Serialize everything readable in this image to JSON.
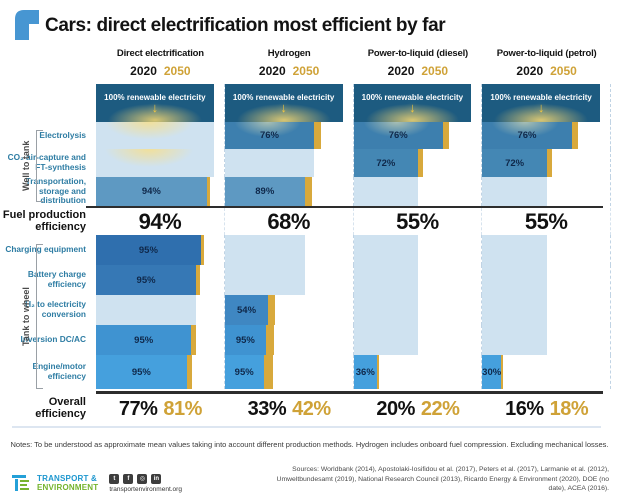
{
  "title": {
    "text": "Cars: direct electrification most efficient by far"
  },
  "years": {
    "y2020": "2020",
    "y2050": "2050"
  },
  "sections": {
    "well_to_tank": "Well to tank",
    "tank_to_wheel": "Tank to wheel"
  },
  "labels": {
    "fuel_production_line1": "Fuel production",
    "fuel_production_line2": "efficiency",
    "overall": "Overall efficiency"
  },
  "chart_data": {
    "type": "bar",
    "subtype": "efficiency-cascade",
    "unit": "%",
    "renewable_header": "100% renewable electricity",
    "colors": {
      "header_navy": "#1d5b80",
      "gold_2050": "#d8a93c",
      "gold_text": "#cfa237",
      "year_2020_text": "#141414",
      "skip_pale": "#cfe2f0",
      "row_label_teal": "#2d7ca3",
      "bar_label_navy": "#0f284a",
      "row_fills": {
        "electrolysis": "#3d7fae",
        "co2": "#4487b4",
        "transport": "#5e99c2",
        "charging": "#2f6fae",
        "battery": "#3678b5",
        "h2conv": "#3f87c2",
        "inversion": "#3f93d1",
        "engine": "#45a0dd"
      }
    },
    "row_defs": [
      {
        "key": "electrolysis",
        "label": "Electrolysis",
        "section": "well_to_tank"
      },
      {
        "key": "co2",
        "label": "CO₂ air-capture and FT-synthesis",
        "section": "well_to_tank"
      },
      {
        "key": "transport",
        "label": "Transportation, storage and distribution",
        "section": "well_to_tank"
      },
      {
        "key": "charging",
        "label": "Charging equipment",
        "section": "tank_to_wheel"
      },
      {
        "key": "battery",
        "label": "Battery charge efficiency",
        "section": "tank_to_wheel"
      },
      {
        "key": "h2conv",
        "label": "H₂ to electricity conversion",
        "section": "tank_to_wheel"
      },
      {
        "key": "inversion",
        "label": "Inversion DC/AC",
        "section": "tank_to_wheel"
      },
      {
        "key": "engine",
        "label": "Engine/motor efficiency",
        "section": "tank_to_wheel"
      }
    ],
    "columns": [
      {
        "name": "Direct electrification",
        "fuel_production_efficiency_2020": "94%",
        "overall_efficiency_2020": "77%",
        "overall_efficiency_2050": "81%",
        "steps": {
          "electrolysis": {
            "applies": false,
            "cum_width_pct": 100,
            "glow": true
          },
          "co2": {
            "applies": false,
            "cum_width_pct": 100,
            "glow": true
          },
          "transport": {
            "applies": true,
            "value": "94%",
            "cum_width_pct": 94,
            "gold_extra_pct": 3
          },
          "charging": {
            "applies": true,
            "value": "95%",
            "cum_width_pct": 89,
            "gold_extra_pct": 3
          },
          "battery": {
            "applies": true,
            "value": "95%",
            "cum_width_pct": 85,
            "gold_extra_pct": 3.5
          },
          "h2conv": {
            "applies": false,
            "cum_width_pct": 85
          },
          "inversion": {
            "applies": true,
            "value": "95%",
            "cum_width_pct": 81,
            "gold_extra_pct": 4
          },
          "engine": {
            "applies": true,
            "value": "95%",
            "cum_width_pct": 77,
            "gold_extra_pct": 4.5
          }
        }
      },
      {
        "name": "Hydrogen",
        "fuel_production_efficiency_2020": "68%",
        "overall_efficiency_2020": "33%",
        "overall_efficiency_2050": "42%",
        "steps": {
          "electrolysis": {
            "applies": true,
            "value": "76%",
            "cum_width_pct": 76,
            "gold_extra_pct": 6,
            "glow": true
          },
          "co2": {
            "applies": false,
            "cum_width_pct": 76
          },
          "transport": {
            "applies": true,
            "value": "89%",
            "cum_width_pct": 68,
            "gold_extra_pct": 6
          },
          "charging": {
            "applies": false,
            "cum_width_pct": 68
          },
          "battery": {
            "applies": false,
            "cum_width_pct": 68
          },
          "h2conv": {
            "applies": true,
            "value": "54%",
            "cum_width_pct": 37,
            "gold_extra_pct": 6
          },
          "inversion": {
            "applies": true,
            "value": "95%",
            "cum_width_pct": 35,
            "gold_extra_pct": 7
          },
          "engine": {
            "applies": true,
            "value": "95%",
            "cum_width_pct": 33,
            "gold_extra_pct": 8
          }
        }
      },
      {
        "name": "Power-to-liquid (diesel)",
        "fuel_production_efficiency_2020": "55%",
        "overall_efficiency_2020": "20%",
        "overall_efficiency_2050": "22%",
        "steps": {
          "electrolysis": {
            "applies": true,
            "value": "76%",
            "cum_width_pct": 76,
            "gold_extra_pct": 5,
            "glow": true
          },
          "co2": {
            "applies": true,
            "value": "72%",
            "cum_width_pct": 55,
            "gold_extra_pct": 4
          },
          "transport": {
            "applies": false,
            "cum_width_pct": 55
          },
          "charging": {
            "applies": false,
            "cum_width_pct": 55
          },
          "battery": {
            "applies": false,
            "cum_width_pct": 55
          },
          "h2conv": {
            "applies": false,
            "cum_width_pct": 55
          },
          "inversion": {
            "applies": false,
            "cum_width_pct": 55
          },
          "engine": {
            "applies": true,
            "value": "36%",
            "cum_width_pct": 20,
            "gold_extra_pct": 2
          }
        }
      },
      {
        "name": "Power-to-liquid (petrol)",
        "fuel_production_efficiency_2020": "55%",
        "overall_efficiency_2020": "16%",
        "overall_efficiency_2050": "18%",
        "steps": {
          "electrolysis": {
            "applies": true,
            "value": "76%",
            "cum_width_pct": 76,
            "gold_extra_pct": 5,
            "glow": true
          },
          "co2": {
            "applies": true,
            "value": "72%",
            "cum_width_pct": 55,
            "gold_extra_pct": 4
          },
          "transport": {
            "applies": false,
            "cum_width_pct": 55
          },
          "charging": {
            "applies": false,
            "cum_width_pct": 55
          },
          "battery": {
            "applies": false,
            "cum_width_pct": 55
          },
          "h2conv": {
            "applies": false,
            "cum_width_pct": 55
          },
          "inversion": {
            "applies": false,
            "cum_width_pct": 55
          },
          "engine": {
            "applies": true,
            "value": "30%",
            "cum_width_pct": 16,
            "gold_extra_pct": 2
          }
        }
      }
    ]
  },
  "notes": "Notes: To be understood as approximate mean values taking into account different production methods. Hydrogen includes onboard fuel compression. Excluding mechanical losses.",
  "footer": {
    "org_line1": "TRANSPORT &",
    "org_line2": "ENVIRONMENT",
    "website": "transportenvironment.org",
    "social": [
      "twitter-icon",
      "facebook-icon",
      "instagram-icon",
      "linkedin-icon"
    ],
    "sources": "Sources: Worldbank (2014), Apostolaki-Iosifidou et al. (2017), Peters et al. (2017), Larmanie et al. (2012), Umweltbundesamt (2019), National Research Council (2013), Ricardo Energy & Environment (2020), DOE (no date), ACEA (2016)."
  }
}
